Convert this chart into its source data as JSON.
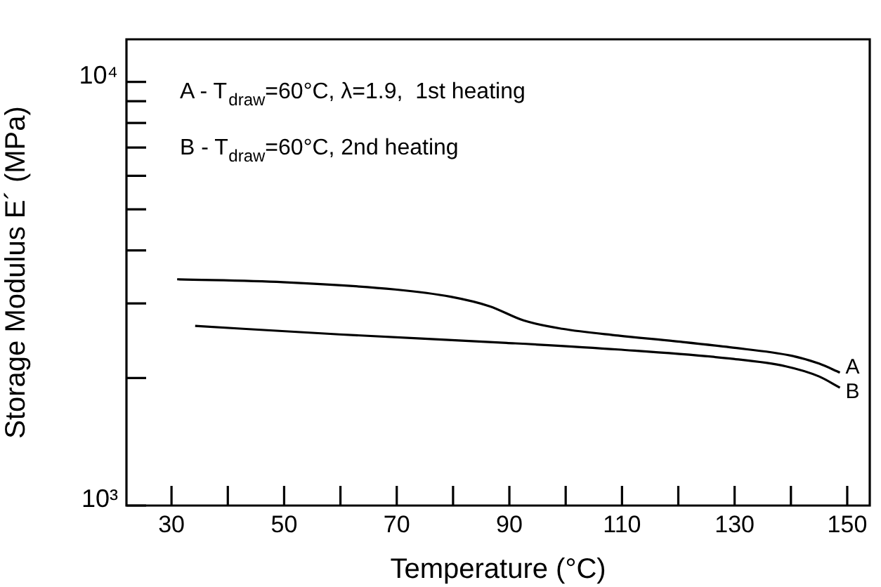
{
  "chart_data": {
    "type": "line",
    "xlabel": "Temperature (°C)",
    "ylabel": "Storage Modulus E´ (MPa)",
    "annotations": [
      "A - T$_{draw}$=60°C, λ=1.9,  1st heating",
      "B - T$_{draw}$=60°C, 2nd heating"
    ],
    "series": [
      {
        "name": "A",
        "color": "#000000",
        "x": [
          31,
          49.8,
          69.7,
          79.6,
          86.5,
          92.5,
          99.4,
          109.3,
          119.3,
          129.2,
          140.1,
          145,
          148.7
        ],
        "values": [
          3420,
          3367,
          3236,
          3110,
          2953,
          2735,
          2613,
          2519,
          2443,
          2363,
          2257,
          2163,
          2060
        ]
      },
      {
        "name": "B",
        "color": "#000000",
        "x": [
          34.2,
          59.8,
          89.5,
          109.3,
          129.2,
          139.1,
          145,
          148.7
        ],
        "values": [
          2654,
          2535,
          2421,
          2335,
          2223,
          2131,
          2017,
          1897
        ]
      }
    ],
    "log": "y",
    "xlim": [
      22,
      154
    ],
    "ylim": [
      1000,
      12600
    ],
    "xticks": [
      30,
      {
        "value": 40,
        "label": null
      },
      50,
      {
        "value": 60,
        "label": null
      },
      70,
      {
        "value": 80,
        "label": null
      },
      90,
      {
        "value": 100,
        "label": null
      },
      110,
      {
        "value": 120,
        "label": null
      },
      130,
      {
        "value": 140,
        "label": null
      },
      150
    ],
    "yticks": [
      {
        "value": 1000,
        "label": "10³"
      },
      {
        "value": 2000,
        "label": null
      },
      {
        "value": 3000,
        "label": null
      },
      {
        "value": 4000,
        "label": null
      },
      {
        "value": 5000,
        "label": null
      },
      {
        "value": 6000,
        "label": null
      },
      {
        "value": 7000,
        "label": null
      },
      {
        "value": 8000,
        "label": null
      },
      {
        "value": 9000,
        "label": null
      },
      {
        "value": 10000,
        "label": "10⁴"
      }
    ],
    "grid": false,
    "legend": false,
    "marker": "none",
    "line_style": "solid"
  }
}
